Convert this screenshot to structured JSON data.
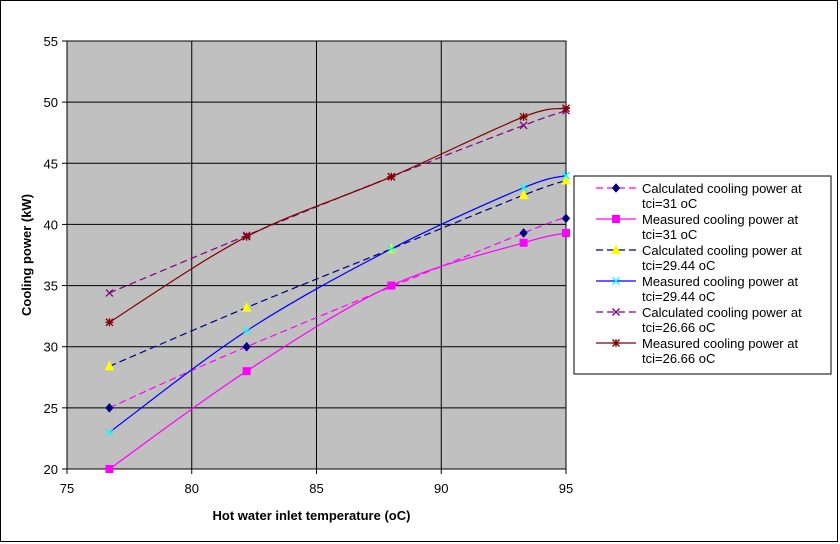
{
  "chart_data": {
    "type": "line",
    "title": "",
    "xlabel": "Hot water inlet temperature (oC)",
    "ylabel": "Cooling power (kW)",
    "xlim": [
      75,
      95
    ],
    "ylim": [
      20,
      55
    ],
    "xticks": [
      75,
      80,
      85,
      90,
      95
    ],
    "yticks": [
      20,
      25,
      30,
      35,
      40,
      45,
      50,
      55
    ],
    "xtick_labels": [
      "75",
      "80",
      "85",
      "90",
      "95"
    ],
    "ytick_labels": [
      "20",
      "25",
      "30",
      "35",
      "40",
      "45",
      "50",
      "55"
    ],
    "grid": true,
    "plot_background": "#c0c0c0",
    "legend_position": "right",
    "series": [
      {
        "name": "Calculated cooling power at tci=31 oC",
        "legend_lines": [
          "Calculated cooling power at",
          "tci=31 oC"
        ],
        "color": "#ff00ff",
        "marker_color": "#000080",
        "line_style": "dashed",
        "marker": "diamond",
        "x": [
          76.7,
          82.2,
          93.3,
          95
        ],
        "y": [
          25,
          30,
          39.3,
          40.5
        ]
      },
      {
        "name": "Measured cooling power at tci=31 oC",
        "legend_lines": [
          "Measured cooling power at",
          "tci=31 oC"
        ],
        "color": "#ff00ff",
        "marker_color": "#ff00ff",
        "line_style": "solid",
        "marker": "square",
        "x": [
          76.7,
          82.2,
          88,
          93.3,
          95
        ],
        "y": [
          20,
          28,
          35,
          38.5,
          39.3
        ]
      },
      {
        "name": "Calculated cooling power at tci=29.44 oC",
        "legend_lines": [
          "Calculated cooling power at",
          "tci=29.44 oC"
        ],
        "color": "#000080",
        "marker_color": "#ffff00",
        "line_style": "dashed",
        "marker": "triangle",
        "x": [
          76.7,
          82.2,
          88,
          93.3,
          95
        ],
        "y": [
          28.4,
          33.2,
          38,
          42.4,
          43.6
        ]
      },
      {
        "name": "Measured cooling power at tci=29.44 oC",
        "legend_lines": [
          "Measured cooling power at",
          "tci=29.44 oC"
        ],
        "color": "#0000ff",
        "marker_color": "#00ffff",
        "line_style": "solid",
        "marker": "x",
        "x": [
          76.7,
          82.2,
          88,
          93.3,
          95
        ],
        "y": [
          23,
          31.3,
          38,
          43,
          44
        ]
      },
      {
        "name": "Calculated cooling power at tci=26.66 oC",
        "legend_lines": [
          "Calculated cooling power at",
          "tci=26.66 oC"
        ],
        "color": "#800080",
        "marker_color": "#800080",
        "line_style": "dashed",
        "marker": "x",
        "x": [
          76.7,
          82.2,
          88,
          93.3,
          95
        ],
        "y": [
          34.4,
          39.1,
          43.9,
          48.1,
          49.3
        ]
      },
      {
        "name": "Measured cooling power at tci=26.66 oC",
        "legend_lines": [
          "Measured cooling power at",
          "tci=26.66 oC"
        ],
        "color": "#800000",
        "marker_color": "#800000",
        "line_style": "solid",
        "marker": "star",
        "x": [
          76.7,
          82.2,
          88,
          93.3,
          95
        ],
        "y": [
          32,
          39,
          43.9,
          48.8,
          49.5
        ]
      }
    ]
  }
}
